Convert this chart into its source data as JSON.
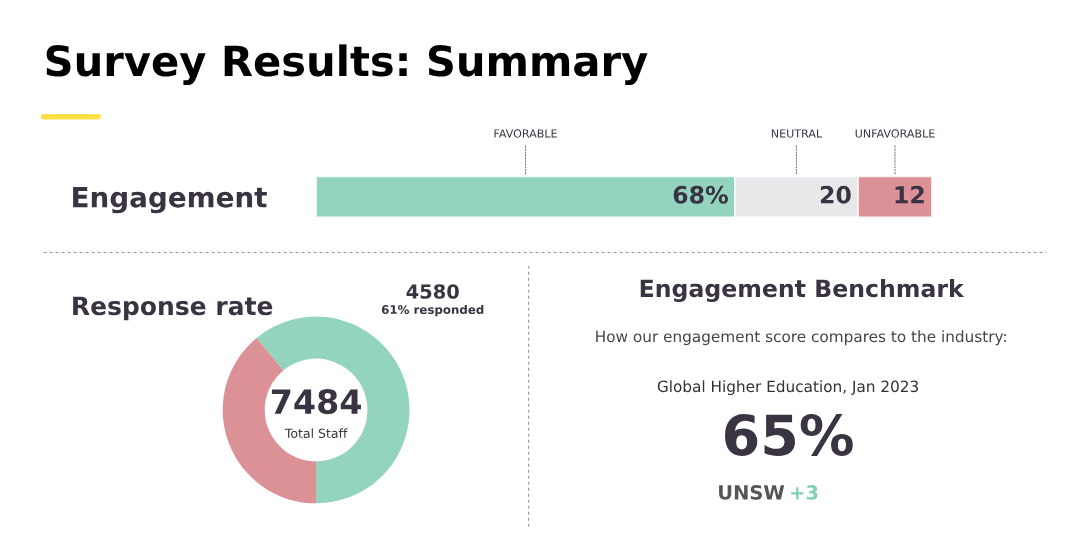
{
  "chart_data": [
    {
      "type": "bar",
      "orientation": "horizontal",
      "stacked": true,
      "title": "Survey Results: Summary",
      "categories": [
        "Engagement"
      ],
      "xlim": [
        0,
        100
      ],
      "tick_labels": "y",
      "legend": false,
      "series": [
        {
          "name": "FAVORABLE",
          "color": "#93d4be",
          "values": [
            68
          ],
          "value_labels": [
            "68%"
          ]
        },
        {
          "name": "NEUTRAL",
          "color": "#e8e8ea",
          "values": [
            20
          ],
          "value_labels": [
            "20"
          ]
        },
        {
          "name": "UNFAVORABLE",
          "color": "#dc9196",
          "values": [
            12
          ],
          "value_labels": [
            "12"
          ]
        }
      ]
    },
    {
      "type": "donut",
      "title": "Response rate",
      "categories": [
        null,
        null
      ],
      "values": [
        61,
        39
      ],
      "colors": [
        "#93d4be",
        "#dc9196"
      ],
      "annotations": [
        "4580",
        "61% responded",
        "7484",
        "Total Staff"
      ]
    },
    {
      "type": "other",
      "title": "Engagement Benchmark",
      "subtitle": "How our engagement score compares to the industry:",
      "annotations": [
        "Global Higher Education, Jan 2023",
        "65%",
        "UNSW",
        "+3"
      ]
    }
  ]
}
